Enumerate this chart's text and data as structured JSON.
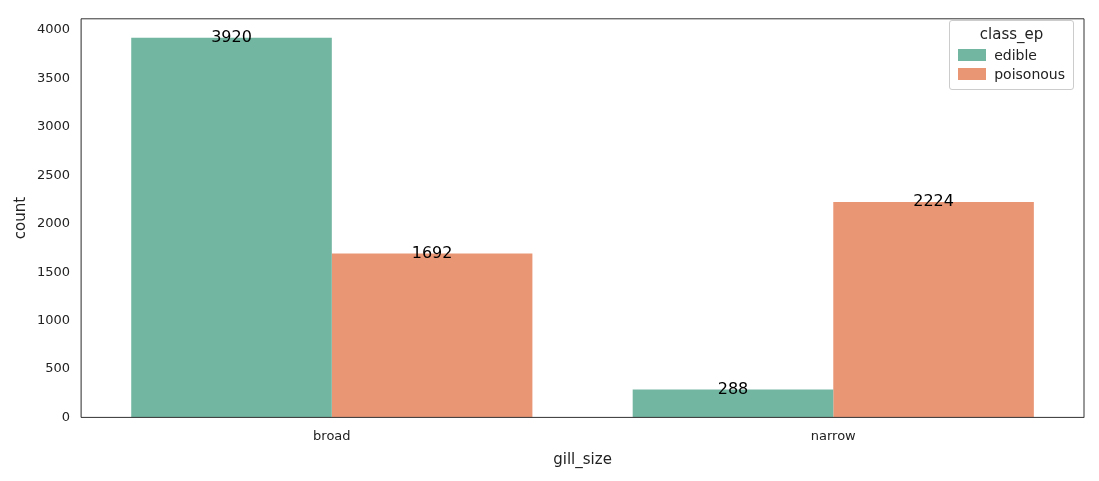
{
  "chart_data": {
    "type": "bar",
    "xlabel": "gill_size",
    "ylabel": "count",
    "legend_title": "class_ep",
    "categories": [
      "broad",
      "narrow"
    ],
    "series": [
      {
        "name": "edible",
        "color": "#72b6a1",
        "values": [
          3920,
          288
        ]
      },
      {
        "name": "poisonous",
        "color": "#e99675",
        "values": [
          1692,
          2224
        ]
      }
    ],
    "ylim": [
      0,
      4116
    ],
    "yticks": [
      0,
      500,
      1000,
      1500,
      2000,
      2500,
      3000,
      3500,
      4000
    ],
    "grid": false,
    "legend": "top right",
    "data_labels": true
  }
}
